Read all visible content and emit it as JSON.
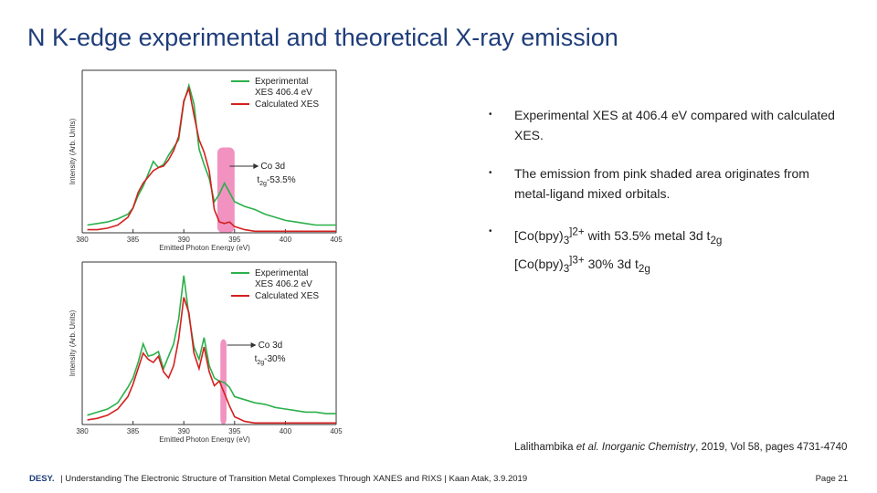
{
  "title": "N K-edge experimental and theoretical X-ray emission",
  "bullets": {
    "b1": "Experimental XES at 406.4 eV compared with calculated XES.",
    "b2": "The  emission from pink shaded area originates from metal-ligand mixed orbitals.",
    "b3_l1_pre": "[Co(bpy)",
    "b3_l1_sub": "3",
    "b3_l1_sup": "]2+",
    "b3_l1_post": " with 53.5% metal 3d t",
    "b3_l1_sub2": "2g",
    "b3_l2_pre": "[Co(bpy)",
    "b3_l2_sub": "3",
    "b3_l2_sup": "]3+",
    "b3_l2_post": " 30% 3d t",
    "b3_l2_sub2": "2g",
    "marker": "•"
  },
  "reference": {
    "authors": "Lalithambika ",
    "etal": "et al. Inorganic Chemistry",
    "rest": ", 2019, Vol 58, pages 4731-4740"
  },
  "footer": {
    "logo": "DESY.",
    "text": "| Understanding The Electronic Structure of Transition Metal Complexes Through XANES and RIXS | Kaan Atak, 3.9.2019",
    "page": "Page 21"
  },
  "colors": {
    "experimental": "#2bb04a",
    "calculated": "#d42020",
    "shade": "#ee7fb5",
    "title": "#1f3d7a"
  },
  "chart_data": [
    {
      "type": "line",
      "xlabel": "Emitted Photon Energy (eV)",
      "ylabel": "Intensity (Arb. Units)",
      "xlim": [
        380,
        405
      ],
      "xticks": [
        "380",
        "385",
        "390",
        "395",
        "400",
        "405"
      ],
      "legend": [
        "Experimental",
        "XES 406.4 eV",
        "Calculated XES"
      ],
      "legend_position": "top-right",
      "shaded_region": [
        393.3,
        395.0
      ],
      "annotation": {
        "line1": "Co 3d",
        "line2_pre": "t",
        "line2_sub": "2g",
        "line2_post": "-53.5%"
      },
      "series": [
        {
          "name": "Experimental XES 406.4 eV",
          "x": [
            380.5,
            381.5,
            382.5,
            383.5,
            384.5,
            385,
            385.5,
            386,
            386.5,
            387,
            387.5,
            388,
            388.5,
            389,
            389.5,
            390,
            390.5,
            391,
            391.5,
            392,
            392.5,
            393,
            393.5,
            394,
            394.5,
            395,
            396,
            397,
            398,
            399,
            400,
            401,
            402,
            403,
            404,
            405
          ],
          "y": [
            0.05,
            0.06,
            0.07,
            0.09,
            0.12,
            0.16,
            0.24,
            0.3,
            0.38,
            0.46,
            0.42,
            0.44,
            0.5,
            0.55,
            0.6,
            0.84,
            0.95,
            0.83,
            0.54,
            0.44,
            0.35,
            0.2,
            0.25,
            0.32,
            0.26,
            0.2,
            0.17,
            0.15,
            0.12,
            0.1,
            0.08,
            0.07,
            0.06,
            0.05,
            0.05,
            0.05
          ]
        },
        {
          "name": "Calculated XES",
          "x": [
            380.5,
            381.5,
            382.5,
            383.5,
            384.5,
            385,
            385.5,
            386,
            386.5,
            387,
            387.5,
            388,
            388.5,
            389,
            389.5,
            390,
            390.5,
            391,
            391.5,
            392,
            392.5,
            393,
            393.5,
            394,
            394.5,
            395,
            396,
            397,
            398,
            399,
            400,
            401,
            402,
            403,
            404,
            405
          ],
          "y": [
            0.02,
            0.02,
            0.03,
            0.05,
            0.1,
            0.16,
            0.26,
            0.32,
            0.36,
            0.4,
            0.42,
            0.43,
            0.47,
            0.53,
            0.62,
            0.85,
            0.93,
            0.76,
            0.6,
            0.52,
            0.4,
            0.15,
            0.07,
            0.06,
            0.07,
            0.04,
            0.02,
            0.01,
            0.01,
            0.01,
            0.01,
            0.01,
            0.01,
            0.01,
            0.01,
            0.01
          ]
        }
      ]
    },
    {
      "type": "line",
      "xlabel": "Emitted Photon Energy (eV)",
      "ylabel": "Intensity (Arb. Units)",
      "xlim": [
        380,
        405
      ],
      "xticks": [
        "380",
        "385",
        "390",
        "395",
        "400",
        "405"
      ],
      "legend": [
        "Experimental",
        "XES 406.2 eV",
        "Calculated XES"
      ],
      "legend_position": "top-right",
      "shaded_region": [
        393.6,
        394.2
      ],
      "annotation": {
        "line1": "Co 3d",
        "line2_pre": "t",
        "line2_sub": "2g",
        "line2_post": "-30%"
      },
      "series": [
        {
          "name": "Experimental XES 406.2 eV",
          "x": [
            380.5,
            381.5,
            382.5,
            383.5,
            384.5,
            385,
            385.5,
            386,
            386.5,
            387,
            387.5,
            388,
            388.5,
            389,
            389.5,
            390,
            390.5,
            391,
            391.5,
            392,
            392.5,
            393,
            393.5,
            394,
            394.5,
            395,
            396,
            397,
            398,
            399,
            400,
            401,
            402,
            403,
            404,
            405
          ],
          "y": [
            0.06,
            0.08,
            0.1,
            0.14,
            0.24,
            0.3,
            0.4,
            0.52,
            0.44,
            0.45,
            0.47,
            0.36,
            0.44,
            0.52,
            0.68,
            0.96,
            0.7,
            0.5,
            0.42,
            0.56,
            0.38,
            0.3,
            0.28,
            0.27,
            0.24,
            0.18,
            0.16,
            0.14,
            0.13,
            0.11,
            0.1,
            0.09,
            0.08,
            0.08,
            0.07,
            0.07
          ]
        },
        {
          "name": "Calculated XES",
          "x": [
            380.5,
            381.5,
            382.5,
            383.5,
            384.5,
            385,
            385.5,
            386,
            386.5,
            387,
            387.5,
            388,
            388.5,
            389,
            389.5,
            390,
            390.5,
            391,
            391.5,
            392,
            392.5,
            393,
            393.5,
            394,
            394.5,
            395,
            396,
            397,
            398,
            399,
            400,
            401,
            402,
            403,
            404,
            405
          ],
          "y": [
            0.03,
            0.04,
            0.06,
            0.1,
            0.18,
            0.26,
            0.36,
            0.46,
            0.42,
            0.4,
            0.44,
            0.34,
            0.3,
            0.38,
            0.55,
            0.82,
            0.72,
            0.46,
            0.36,
            0.5,
            0.34,
            0.25,
            0.28,
            0.2,
            0.12,
            0.05,
            0.02,
            0.01,
            0.01,
            0.01,
            0.01,
            0.01,
            0.01,
            0.01,
            0.01,
            0.01
          ]
        }
      ]
    }
  ]
}
